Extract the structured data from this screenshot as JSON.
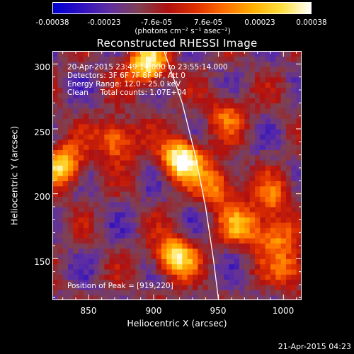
{
  "colorbar": {
    "ticks": [
      "-0.00038",
      "-0.00023",
      "-7.6e-05",
      "7.6e-05",
      "0.00023",
      "0.00038"
    ],
    "units": "(photons cm⁻² s⁻¹ asec⁻²)",
    "min": -0.00038,
    "max": 0.00038,
    "colormap": [
      "#0000d0",
      "#3010c0",
      "#6030a0",
      "#804050",
      "#b01010",
      "#e03000",
      "#ff7000",
      "#ffb000",
      "#ffe040",
      "#ffffff"
    ]
  },
  "annotations": {
    "time": "20-Apr-2015 23:49:14.000 to 23:55:14.000",
    "detectors": "Detectors: 3F 6F 7F 8F 9F, Att 0",
    "energy": "Energy Range: 12.0 - 25.0 keV",
    "clean": "Clean     Total counts: 1.07E+04",
    "peak": "Position of Peak = [919,220]"
  },
  "footer": {
    "timestamp": "21-Apr-2015 04:23"
  },
  "chart_data": {
    "type": "heatmap",
    "title": "Reconstructed RHESSI Image",
    "xlabel": "Heliocentric X (arcsec)",
    "ylabel": "Heliocentric Y (arcsec)",
    "xlim": [
      822,
      1014
    ],
    "ylim": [
      118,
      310
    ],
    "xticks": [
      850,
      900,
      950,
      1000
    ],
    "yticks": [
      150,
      200,
      250,
      300
    ],
    "peak": {
      "x": 919,
      "y": 220
    },
    "sources": [
      {
        "x": 920,
        "y": 225,
        "intensity": 1.0
      },
      {
        "x": 893,
        "y": 298,
        "intensity": 0.85
      },
      {
        "x": 915,
        "y": 150,
        "intensity": 0.8
      },
      {
        "x": 828,
        "y": 220,
        "intensity": 0.75
      },
      {
        "x": 870,
        "y": 240,
        "intensity": 0.6
      },
      {
        "x": 948,
        "y": 205,
        "intensity": 0.55
      },
      {
        "x": 965,
        "y": 175,
        "intensity": 0.5
      },
      {
        "x": 1005,
        "y": 140,
        "intensity": 0.45
      },
      {
        "x": 990,
        "y": 195,
        "intensity": 0.4
      },
      {
        "x": 955,
        "y": 260,
        "intensity": 0.4
      },
      {
        "x": 990,
        "y": 165,
        "intensity": 0.55
      }
    ],
    "limb_curve": [
      {
        "x": 908,
        "y": 310
      },
      {
        "x": 922,
        "y": 270
      },
      {
        "x": 932,
        "y": 230
      },
      {
        "x": 940,
        "y": 190
      },
      {
        "x": 946,
        "y": 150
      },
      {
        "x": 950,
        "y": 118
      }
    ]
  }
}
